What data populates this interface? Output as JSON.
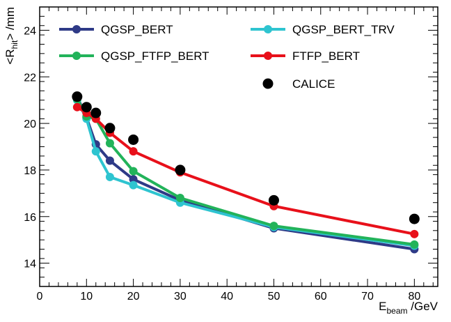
{
  "chart_data": {
    "type": "line",
    "xlabel": {
      "main": "E",
      "sub": "beam",
      "unit": " /GeV"
    },
    "ylabel": {
      "prefix": "<R",
      "sub": "hit",
      "suffix": "> /mm"
    },
    "xlim": [
      0,
      85
    ],
    "ylim": [
      13,
      25
    ],
    "x_ticks": [
      "0",
      "10",
      "20",
      "30",
      "40",
      "50",
      "60",
      "70",
      "80"
    ],
    "y_ticks": [
      "14",
      "16",
      "18",
      "20",
      "22",
      "24"
    ],
    "series": [
      {
        "name": "QGSP_BERT",
        "color": "#2e3a87",
        "kind": "line",
        "x": [
          8,
          10,
          12,
          15,
          20,
          30,
          50,
          80
        ],
        "values": [
          21.15,
          20.25,
          19.1,
          18.4,
          17.6,
          16.7,
          15.5,
          14.6
        ]
      },
      {
        "name": "QGSP_BERT_TRV",
        "color": "#2ec4d0",
        "kind": "line",
        "x": [
          8,
          10,
          12,
          15,
          20,
          30,
          50,
          80
        ],
        "values": [
          21.0,
          20.2,
          18.8,
          17.7,
          17.35,
          16.6,
          15.55,
          14.75
        ]
      },
      {
        "name": "QGSP_FTFP_BERT",
        "color": "#22b35a",
        "kind": "line",
        "x": [
          8,
          10,
          12,
          15,
          20,
          30,
          50,
          80
        ],
        "values": [
          21.05,
          20.3,
          20.2,
          19.15,
          17.95,
          16.8,
          15.6,
          14.8
        ]
      },
      {
        "name": "FTFP_BERT",
        "color": "#e8101a",
        "kind": "line",
        "x": [
          8,
          10,
          12,
          15,
          20,
          30,
          50,
          80
        ],
        "values": [
          20.7,
          20.45,
          20.2,
          19.6,
          18.8,
          17.9,
          16.45,
          15.25
        ]
      },
      {
        "name": "CALICE",
        "color": "#000000",
        "kind": "points",
        "x": [
          8,
          10,
          12,
          15,
          20,
          30,
          50,
          80
        ],
        "values": [
          21.15,
          20.7,
          20.45,
          19.8,
          19.3,
          18.0,
          16.7,
          15.9
        ]
      }
    ],
    "legend": [
      "QGSP_BERT",
      "QGSP_BERT_TRV",
      "QGSP_FTFP_BERT",
      "FTFP_BERT",
      "CALICE"
    ],
    "legend_position": "top"
  }
}
